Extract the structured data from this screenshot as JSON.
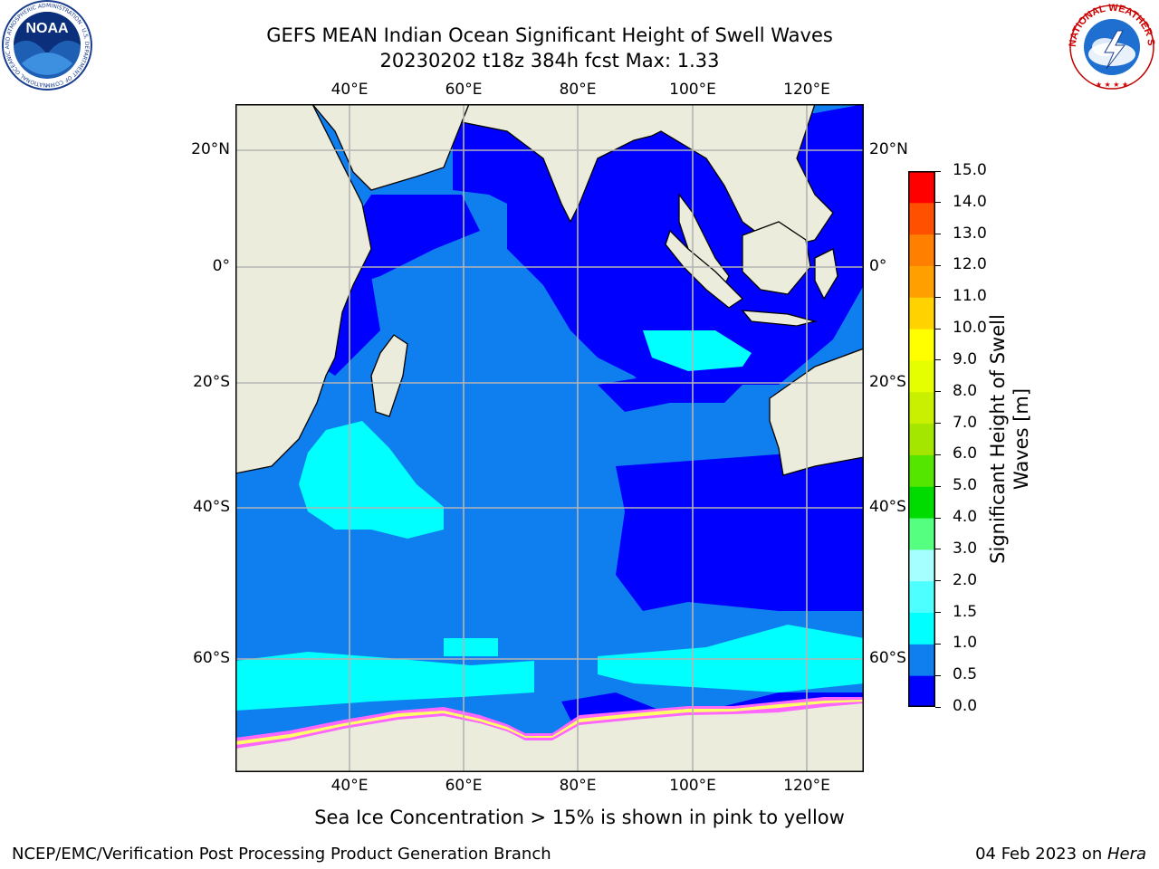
{
  "title": {
    "line1": "GEFS MEAN Indian Ocean Significant Height of Swell Waves",
    "line2": "20230202 t18z 384h fcst   Max: 1.33"
  },
  "logos": {
    "noaa_text": "NOAA",
    "noaa_ring_text": "NATIONAL OCEANIC AND ATMOSPHERIC ADMINISTRATION · U.S. DEPARTMENT OF COMMERCE",
    "nws_ring_text": "NATIONAL WEATHER SERVICE"
  },
  "map": {
    "lon_labels": [
      "40°E",
      "60°E",
      "80°E",
      "100°E",
      "120°E"
    ],
    "lat_labels": [
      "20°N",
      "0°",
      "20°S",
      "40°S",
      "60°S"
    ],
    "colors": {
      "ocean_0_05": "#0000ff",
      "ocean_05_10": "#0f7ff0",
      "ocean_10_15": "#00ffff",
      "land": "#ececdc",
      "grid": "#b4b4b4",
      "ice_pink": "#ff66ff",
      "ice_yellow": "#ffff66"
    }
  },
  "colorbar": {
    "title_line1": "Significant Height of Swell",
    "title_line2": "Waves [m]",
    "levels": [
      "0.0",
      "0.5",
      "1.0",
      "1.5",
      "2.0",
      "3.0",
      "4.0",
      "5.0",
      "6.0",
      "7.0",
      "8.0",
      "9.0",
      "10.0",
      "11.0",
      "12.0",
      "13.0",
      "14.0",
      "15.0"
    ],
    "colors": [
      "#0000ff",
      "#0f7ff0",
      "#00ffff",
      "#4dffff",
      "#a6ffff",
      "#55ff80",
      "#00dc00",
      "#55e600",
      "#a5e600",
      "#c8f000",
      "#e6ff00",
      "#ffff00",
      "#ffd200",
      "#ffa000",
      "#ff8000",
      "#ff5000",
      "#ff0000"
    ]
  },
  "caption": "Sea Ice Concentration > 15% is shown in pink to yellow",
  "footer": {
    "left": "NCEP/EMC/Verification Post Processing Product Generation Branch",
    "date": "04 Feb 2023 on ",
    "host": "Hera"
  }
}
